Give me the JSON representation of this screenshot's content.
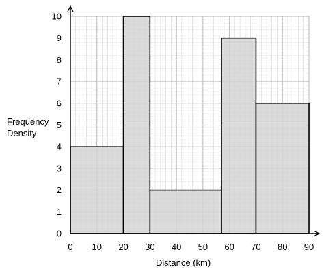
{
  "chart_data": {
    "type": "histogram",
    "title": "",
    "xlabel": "Distance (km)",
    "ylabel_lines": [
      "Frequency",
      "Density"
    ],
    "xlim": [
      0,
      90
    ],
    "ylim": [
      0,
      10
    ],
    "x_ticks": [
      0,
      10,
      20,
      30,
      40,
      50,
      60,
      70,
      80,
      90
    ],
    "y_ticks": [
      0,
      1,
      2,
      3,
      4,
      5,
      6,
      7,
      8,
      9,
      10
    ],
    "bars": [
      {
        "x0": 0,
        "x1": 20,
        "value": 4
      },
      {
        "x0": 20,
        "x1": 30,
        "value": 10
      },
      {
        "x0": 30,
        "x1": 57,
        "value": 2
      },
      {
        "x0": 57,
        "x1": 70,
        "value": 9
      },
      {
        "x0": 70,
        "x1": 90,
        "value": 6
      }
    ],
    "grid": true,
    "colors": {
      "bar_fill": "#d4d4d4",
      "bar_stroke": "#000000",
      "grid_minor": "#d8d8d8",
      "grid_major": "#b0b0b0"
    }
  }
}
